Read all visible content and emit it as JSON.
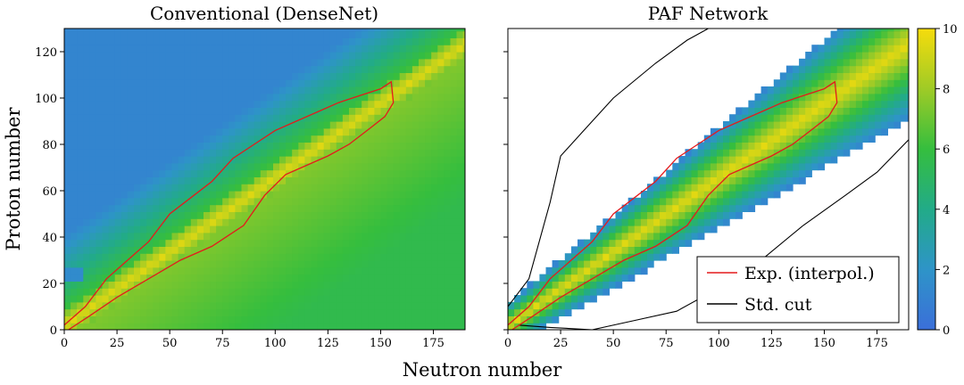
{
  "figure": {
    "shared_xlabel": "Neutron number",
    "shared_ylabel": "Proton number"
  },
  "chart_data": [
    {
      "type": "heatmap",
      "title": "Conventional (DenseNet)",
      "xlabel": "Neutron number",
      "ylabel": "Proton number",
      "xlim": [
        0,
        190
      ],
      "ylim": [
        0,
        130
      ],
      "xticks": [
        0,
        25,
        50,
        75,
        100,
        125,
        150,
        175
      ],
      "yticks": [
        0,
        20,
        40,
        60,
        80,
        100,
        120
      ],
      "coverage": "full grid: predictions on the whole N–Z plane",
      "exp_boundary_upper": [
        [
          0,
          2
        ],
        [
          10,
          10
        ],
        [
          20,
          22
        ],
        [
          30,
          30
        ],
        [
          40,
          38
        ],
        [
          50,
          50
        ],
        [
          60,
          57
        ],
        [
          70,
          64
        ],
        [
          80,
          74
        ],
        [
          90,
          80
        ],
        [
          100,
          86
        ],
        [
          110,
          90
        ],
        [
          120,
          94
        ],
        [
          130,
          98
        ],
        [
          140,
          101
        ],
        [
          150,
          104
        ],
        [
          155,
          107
        ]
      ],
      "exp_boundary_lower": [
        [
          2,
          0
        ],
        [
          12,
          6
        ],
        [
          25,
          14
        ],
        [
          40,
          22
        ],
        [
          55,
          30
        ],
        [
          70,
          36
        ],
        [
          85,
          45
        ],
        [
          95,
          58
        ],
        [
          105,
          67
        ],
        [
          115,
          71
        ],
        [
          125,
          75
        ],
        [
          135,
          80
        ],
        [
          145,
          87
        ],
        [
          152,
          92
        ],
        [
          156,
          98
        ]
      ]
    },
    {
      "type": "heatmap",
      "title": "PAF Network",
      "xlabel": "Neutron number",
      "xlim": [
        0,
        190
      ],
      "ylim": [
        0,
        130
      ],
      "xticks": [
        0,
        25,
        50,
        75,
        100,
        125,
        150,
        175
      ],
      "yticks": [
        0,
        20,
        40,
        60,
        80,
        100,
        120
      ],
      "coverage": "band along the valley of stability",
      "std_cut_upper": [
        [
          0,
          10
        ],
        [
          10,
          22
        ],
        [
          20,
          55
        ],
        [
          25,
          75
        ],
        [
          35,
          85
        ],
        [
          50,
          100
        ],
        [
          70,
          115
        ],
        [
          85,
          125
        ],
        [
          95,
          130
        ]
      ],
      "std_cut_lower": [
        [
          5,
          2
        ],
        [
          20,
          1
        ],
        [
          40,
          0
        ],
        [
          60,
          4
        ],
        [
          80,
          8
        ],
        [
          100,
          18
        ],
        [
          120,
          30
        ],
        [
          140,
          45
        ],
        [
          160,
          58
        ],
        [
          175,
          68
        ],
        [
          190,
          82
        ]
      ],
      "exp_boundary_upper": [
        [
          0,
          2
        ],
        [
          10,
          10
        ],
        [
          20,
          22
        ],
        [
          30,
          30
        ],
        [
          40,
          38
        ],
        [
          50,
          50
        ],
        [
          60,
          57
        ],
        [
          70,
          64
        ],
        [
          80,
          74
        ],
        [
          90,
          80
        ],
        [
          100,
          86
        ],
        [
          110,
          90
        ],
        [
          120,
          94
        ],
        [
          130,
          98
        ],
        [
          140,
          101
        ],
        [
          150,
          104
        ],
        [
          155,
          107
        ]
      ],
      "exp_boundary_lower": [
        [
          2,
          0
        ],
        [
          12,
          6
        ],
        [
          25,
          14
        ],
        [
          40,
          22
        ],
        [
          55,
          30
        ],
        [
          70,
          36
        ],
        [
          85,
          45
        ],
        [
          95,
          58
        ],
        [
          105,
          67
        ],
        [
          115,
          71
        ],
        [
          125,
          75
        ],
        [
          135,
          80
        ],
        [
          145,
          87
        ],
        [
          152,
          92
        ],
        [
          156,
          98
        ]
      ],
      "legend": {
        "position": "lower-right",
        "entries": [
          {
            "label": "Exp. (interpol.)",
            "color": "#e41a1c"
          },
          {
            "label": "Std. cut",
            "color": "#000000"
          }
        ]
      }
    }
  ],
  "colorbar": {
    "range": [
      0,
      10
    ],
    "ticks": [
      0,
      2,
      4,
      6,
      8,
      10
    ],
    "colors": [
      "#3b6fd9",
      "#2e94c8",
      "#22ab88",
      "#35be3e",
      "#9fcb26",
      "#f6dc0c"
    ]
  }
}
